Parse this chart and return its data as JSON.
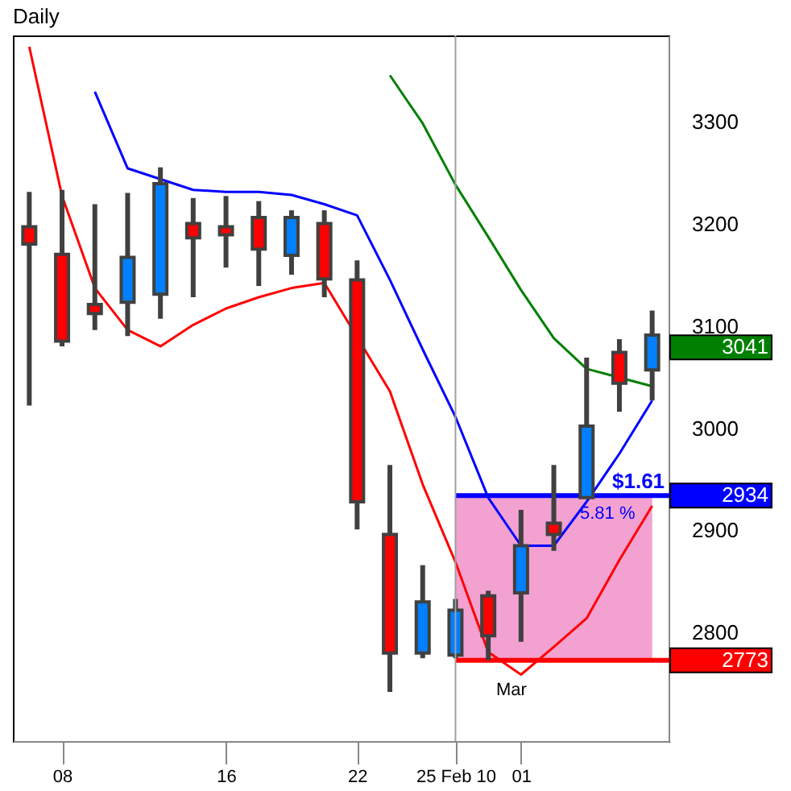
{
  "chart_data": {
    "type": "candlestick",
    "title": "Daily",
    "categories": [
      null,
      "08",
      null,
      null,
      null,
      null,
      "16",
      null,
      null,
      null,
      "22",
      null,
      null,
      "25 Feb 10",
      null,
      "01",
      null,
      null,
      null,
      null
    ],
    "ohlc": [
      [
        3197,
        3231,
        3022,
        3180
      ],
      [
        3170,
        3233,
        3080,
        3085
      ],
      [
        3121,
        3219,
        3096,
        3112
      ],
      [
        3123,
        3230,
        3090,
        3167
      ],
      [
        3131,
        3255,
        3107,
        3239
      ],
      [
        3200,
        3225,
        3128,
        3186
      ],
      [
        3197,
        3227,
        3157,
        3189
      ],
      [
        3206,
        3222,
        3139,
        3175
      ],
      [
        3169,
        3213,
        3150,
        3206
      ],
      [
        3200,
        3213,
        3128,
        3146
      ],
      [
        3145,
        3164,
        2901,
        2928
      ],
      [
        2896,
        2964,
        2742,
        2780
      ],
      [
        2780,
        2866,
        2775,
        2830
      ],
      [
        2778,
        2833,
        2775,
        2822
      ],
      [
        2836,
        2841,
        2773,
        2797
      ],
      [
        2839,
        2920,
        2791,
        2885
      ],
      [
        2907,
        2964,
        2880,
        2896
      ],
      [
        2932,
        3069,
        2932,
        3002
      ],
      [
        3074,
        3087,
        3016,
        3044
      ],
      [
        3057,
        3115,
        3027,
        3091
      ]
    ],
    "colors": [
      "#ff0000",
      "#ff0000",
      "#ff0000",
      "#0080ff",
      "#0080ff",
      "#ff0000",
      "#ff0000",
      "#ff0000",
      "#0080ff",
      "#ff0000",
      "#ff0000",
      "#ff0000",
      "#0080ff",
      "#0080ff",
      "#ff0000",
      "#0080ff",
      "#ff0000",
      "#0080ff",
      "#ff0000",
      "#0080ff"
    ],
    "series": [
      {
        "type": "line",
        "color": "#ff0000",
        "values": [
          3373,
          3227,
          3137,
          3096,
          3080,
          3101,
          3117,
          3128,
          3137,
          3142,
          null,
          3036,
          2945,
          2869,
          2781,
          2759,
          2786,
          2814,
          2871,
          2924
        ]
      },
      {
        "type": "line",
        "color": "#0000ff",
        "values": [
          null,
          null,
          3329,
          3254,
          null,
          3233,
          3231,
          3231,
          3228,
          3219,
          3208,
          3145,
          3077,
          3011,
          2932,
          2885,
          2885,
          2928,
          2975,
          3027
        ]
      },
      {
        "type": "line",
        "color": "#008000",
        "values": [
          null,
          null,
          null,
          null,
          null,
          null,
          null,
          null,
          null,
          null,
          null,
          3345,
          3298,
          3238,
          3187,
          3135,
          3088,
          3058,
          null,
          3041
        ]
      }
    ],
    "ylim": [
      2694,
      3384
    ],
    "yticks": [
      2800,
      2900,
      3000,
      3100,
      3200,
      3300
    ],
    "ref_lines": [
      {
        "axis": "x",
        "value": "25 Feb 10",
        "color": "#a0a0a0"
      },
      {
        "axis": "y",
        "value": 2934,
        "label": "2934",
        "color": "#0000ff"
      },
      {
        "axis": "y",
        "value": 2773,
        "label": "2773",
        "color": "#ff0000"
      }
    ],
    "bands": [
      {
        "axis": "y",
        "from": 2773,
        "to": 2934,
        "color": "#f090c8"
      }
    ],
    "annotations": [
      "$1.61",
      "5.81 %",
      "Mar",
      "3041"
    ]
  }
}
